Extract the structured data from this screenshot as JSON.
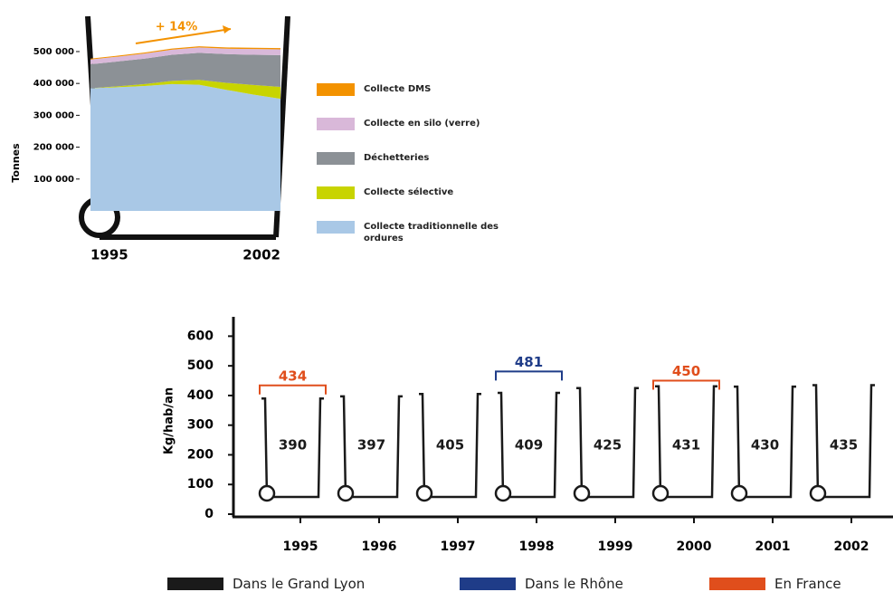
{
  "chart_data": [
    {
      "type": "area",
      "stacked": true,
      "annotation": "+ 14%",
      "ylabel": "Tonnes",
      "x": [
        1995,
        1996,
        1997,
        1998,
        1999,
        2000,
        2001,
        2002
      ],
      "xlim": [
        1995,
        2002
      ],
      "xticks": [
        1995,
        2002
      ],
      "ylim": [
        0,
        605000
      ],
      "yticks": [
        {
          "value": 100000,
          "label": "100 000"
        },
        {
          "value": 200000,
          "label": "200 000"
        },
        {
          "value": 300000,
          "label": "300 000"
        },
        {
          "value": 400000,
          "label": "400 000"
        },
        {
          "value": 500000,
          "label": "500 000"
        }
      ],
      "series": [
        {
          "name": "Collecte traditionnelle des ordures",
          "color": "#a9c8e6",
          "values": [
            385000,
            388000,
            392000,
            398000,
            396000,
            380000,
            365000,
            352000
          ]
        },
        {
          "name": "Collecte sélective",
          "color": "#c8d400",
          "values": [
            0,
            3000,
            6000,
            10000,
            15000,
            22000,
            30000,
            37000
          ]
        },
        {
          "name": "Déchetteries",
          "color": "#8c9196",
          "values": [
            75000,
            78000,
            80000,
            82000,
            85000,
            90000,
            95000,
            100000
          ]
        },
        {
          "name": "Collecte en silo (verre)",
          "color": "#d9b8d9",
          "values": [
            15000,
            15000,
            16000,
            16000,
            17000,
            17000,
            18000,
            18000
          ]
        },
        {
          "name": "Collecte DMS",
          "color": "#f39200",
          "values": [
            3000,
            3000,
            3000,
            3500,
            3500,
            4000,
            4000,
            4000
          ]
        }
      ]
    },
    {
      "type": "bar",
      "ylabel": "Kg/hab/an",
      "categories": [
        "1995",
        "1996",
        "1997",
        "1998",
        "1999",
        "2000",
        "2001",
        "2002"
      ],
      "ylim": [
        0,
        650
      ],
      "yticks": [
        0,
        100,
        200,
        300,
        400,
        500,
        600
      ],
      "series": [
        {
          "name": "Dans le Grand Lyon",
          "color": "#1a1a1a",
          "values": [
            390,
            397,
            405,
            409,
            425,
            431,
            430,
            435
          ]
        },
        {
          "name": "Dans le Rhône",
          "color": "#1f3c88",
          "values": [
            null,
            null,
            null,
            481,
            null,
            null,
            null,
            null
          ]
        },
        {
          "name": "En France",
          "color": "#e04e1c",
          "values": [
            434,
            null,
            null,
            null,
            null,
            450,
            null,
            null
          ]
        }
      ]
    }
  ]
}
